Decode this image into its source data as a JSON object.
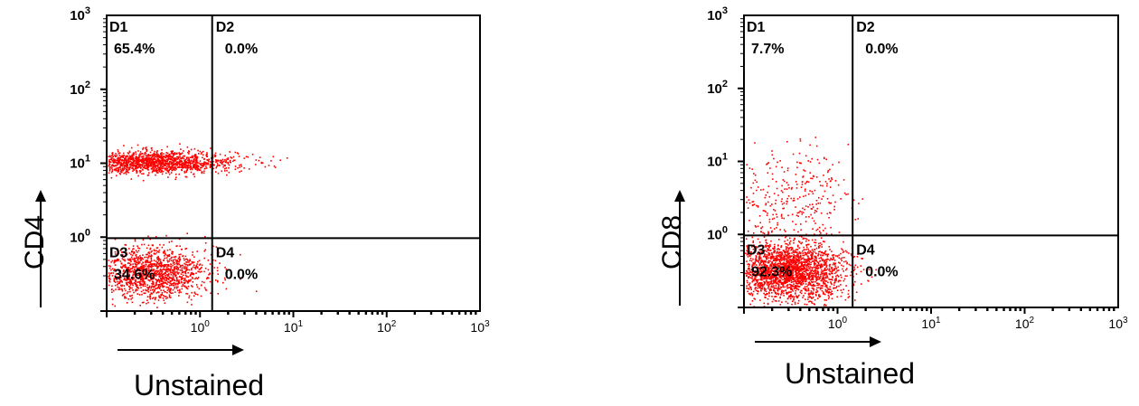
{
  "chart_data": [
    {
      "type": "scatter",
      "xlabel": "Unstained",
      "ylabel": "CD4",
      "x_scale": "log",
      "y_scale": "log",
      "xlim": [
        0.1,
        1000
      ],
      "ylim": [
        0.1,
        1000
      ],
      "x_ticks": [
        {
          "base": "10",
          "exp": "0"
        },
        {
          "base": "10",
          "exp": "1"
        },
        {
          "base": "10",
          "exp": "2"
        },
        {
          "base": "10",
          "exp": "3"
        }
      ],
      "y_ticks": [
        {
          "base": "10",
          "exp": "0"
        },
        {
          "base": "10",
          "exp": "1"
        },
        {
          "base": "10",
          "exp": "2"
        },
        {
          "base": "10",
          "exp": "3"
        }
      ],
      "gate": {
        "x": 1.35,
        "y": 0.97
      },
      "quadrants": [
        {
          "name": "D1",
          "percent": "65.4%"
        },
        {
          "name": "D2",
          "percent": "0.0%"
        },
        {
          "name": "D3",
          "percent": "34.6%"
        },
        {
          "name": "D4",
          "percent": "0.0%"
        }
      ],
      "point_color": "#ff0000",
      "populations": [
        {
          "cx": 0.3,
          "cy": 10.5,
          "sx": 0.45,
          "sy": 0.075,
          "count": 1600
        },
        {
          "cx": 0.3,
          "cy": 0.33,
          "sx": 0.3,
          "sy": 0.18,
          "count": 1400
        }
      ]
    },
    {
      "type": "scatter",
      "xlabel": "Unstained",
      "ylabel": "CD8",
      "x_scale": "log",
      "y_scale": "log",
      "xlim": [
        0.1,
        1000
      ],
      "ylim": [
        0.1,
        1000
      ],
      "x_ticks": [
        {
          "base": "10",
          "exp": "0"
        },
        {
          "base": "10",
          "exp": "1"
        },
        {
          "base": "10",
          "exp": "2"
        },
        {
          "base": "10",
          "exp": "3"
        }
      ],
      "y_ticks": [
        {
          "base": "10",
          "exp": "0"
        },
        {
          "base": "10",
          "exp": "1"
        },
        {
          "base": "10",
          "exp": "2"
        },
        {
          "base": "10",
          "exp": "3"
        }
      ],
      "gate": {
        "x": 1.45,
        "y": 0.97
      },
      "quadrants": [
        {
          "name": "D1",
          "percent": "7.7%"
        },
        {
          "name": "D2",
          "percent": "0.0%"
        },
        {
          "name": "D3",
          "percent": "92.3%"
        },
        {
          "name": "D4",
          "percent": "0.0%"
        }
      ],
      "point_color": "#ff0000",
      "populations": [
        {
          "cx": 0.32,
          "cy": 3.0,
          "sx": 0.3,
          "sy": 0.35,
          "count": 330
        },
        {
          "cx": 0.3,
          "cy": 0.32,
          "sx": 0.3,
          "sy": 0.19,
          "count": 2300
        }
      ]
    }
  ]
}
